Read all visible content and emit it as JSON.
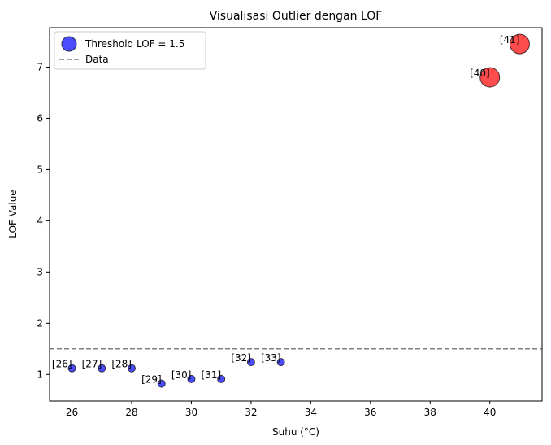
{
  "chart_data": {
    "type": "scatter",
    "title": "Visualisasi Outlier dengan LOF",
    "xlabel": "Suhu (°C)",
    "ylabel": "LOF Value",
    "xlim": [
      25.25,
      41.75
    ],
    "ylim": [
      0.48,
      7.77
    ],
    "xticks": [
      26,
      28,
      30,
      32,
      34,
      36,
      38,
      40
    ],
    "yticks": [
      1,
      2,
      3,
      4,
      5,
      6,
      7
    ],
    "threshold": 1.5,
    "grid": false,
    "legend": {
      "position": "top-left",
      "entries": [
        "Threshold LOF = 1.5",
        "Data"
      ]
    },
    "colors": {
      "normal": "#0000ff",
      "outlier": "#ff0000",
      "threshold_line": "#808080"
    },
    "points": [
      {
        "x": 26,
        "y": 1.12,
        "label": "[26]",
        "outlier": false
      },
      {
        "x": 27,
        "y": 1.12,
        "label": "[27]",
        "outlier": false
      },
      {
        "x": 28,
        "y": 1.12,
        "label": "[28]",
        "outlier": false
      },
      {
        "x": 29,
        "y": 0.82,
        "label": "[29]",
        "outlier": false
      },
      {
        "x": 30,
        "y": 0.91,
        "label": "[30]",
        "outlier": false
      },
      {
        "x": 31,
        "y": 0.91,
        "label": "[31]",
        "outlier": false
      },
      {
        "x": 32,
        "y": 1.24,
        "label": "[32]",
        "outlier": false
      },
      {
        "x": 33,
        "y": 1.24,
        "label": "[33]",
        "outlier": false
      },
      {
        "x": 40,
        "y": 6.8,
        "label": "[40]",
        "outlier": true
      },
      {
        "x": 41,
        "y": 7.45,
        "label": "[41]",
        "outlier": true
      }
    ]
  }
}
